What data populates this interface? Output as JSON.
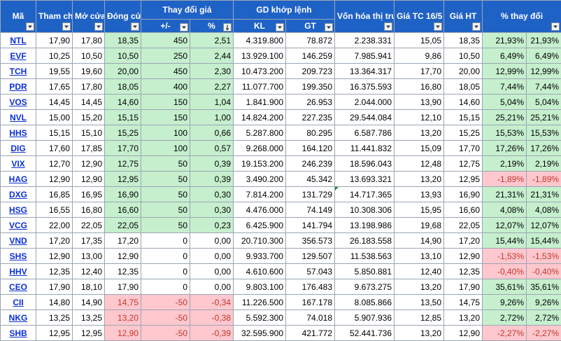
{
  "headers": {
    "ma": "Mã",
    "tham_chieu": "Tham chiếu",
    "mo_cua": "Mở cửa",
    "dong_cua": "Đóng cửa",
    "thay_doi_gia": "Thay đổi giá",
    "thay_doi_abs": "+/-",
    "thay_doi_pct": "%",
    "gd_khop_lenh": "GD khớp lệnh",
    "kl": "KL",
    "gt": "GT",
    "von_hoa": "Vốn hóa thị trường",
    "gia_tc": "Giá TC 16/5",
    "gia_ht": "Giá HT",
    "pct_thay_doi": "% thay đổi"
  },
  "rows": [
    {
      "ticker": "NTL",
      "tham_chieu": "17,90",
      "mo_cua": "17,80",
      "dong_cua": "18,35",
      "change": "450",
      "pct": "2,51",
      "kl": "4.319.800",
      "gt": "78.872",
      "von_hoa": "2.238.331",
      "gia_tc": "15,05",
      "gia_ht": "18,35",
      "pct_thay_doi": "21,93%",
      "pct_extra": "21,93%",
      "dir": "up",
      "pct_dir": "up"
    },
    {
      "ticker": "EVF",
      "tham_chieu": "10,25",
      "mo_cua": "10,50",
      "dong_cua": "10,50",
      "change": "250",
      "pct": "2,44",
      "kl": "13.929.100",
      "gt": "146.259",
      "von_hoa": "7.985.941",
      "gia_tc": "9,86",
      "gia_ht": "10,50",
      "pct_thay_doi": "6,49%",
      "pct_extra": "6,49%",
      "dir": "up",
      "pct_dir": "up"
    },
    {
      "ticker": "TCH",
      "tham_chieu": "19,55",
      "mo_cua": "19,60",
      "dong_cua": "20,00",
      "change": "450",
      "pct": "2,30",
      "kl": "10.473.200",
      "gt": "209.723",
      "von_hoa": "13.364.317",
      "gia_tc": "17,70",
      "gia_ht": "20,00",
      "pct_thay_doi": "12,99%",
      "pct_extra": "12,99%",
      "dir": "up",
      "pct_dir": "up"
    },
    {
      "ticker": "PDR",
      "tham_chieu": "17,65",
      "mo_cua": "17,80",
      "dong_cua": "18,05",
      "change": "400",
      "pct": "2,27",
      "kl": "11.077.700",
      "gt": "199.350",
      "von_hoa": "16.375.593",
      "gia_tc": "16,80",
      "gia_ht": "18,05",
      "pct_thay_doi": "7,44%",
      "pct_extra": "7,44%",
      "dir": "up",
      "pct_dir": "up"
    },
    {
      "ticker": "VOS",
      "tham_chieu": "14,45",
      "mo_cua": "14,45",
      "dong_cua": "14,60",
      "change": "150",
      "pct": "1,04",
      "kl": "1.841.900",
      "gt": "26.953",
      "von_hoa": "2.044.000",
      "gia_tc": "13,90",
      "gia_ht": "14,60",
      "pct_thay_doi": "5,04%",
      "pct_extra": "5,04%",
      "dir": "up",
      "pct_dir": "up"
    },
    {
      "ticker": "NVL",
      "tham_chieu": "15,00",
      "mo_cua": "15,20",
      "dong_cua": "15,15",
      "change": "150",
      "pct": "1,00",
      "kl": "14.824.200",
      "gt": "227.235",
      "von_hoa": "29.544.084",
      "gia_tc": "12,10",
      "gia_ht": "15,15",
      "pct_thay_doi": "25,21%",
      "pct_extra": "25,21%",
      "dir": "up",
      "pct_dir": "up"
    },
    {
      "ticker": "HHS",
      "tham_chieu": "15,15",
      "mo_cua": "15,10",
      "dong_cua": "15,25",
      "change": "100",
      "pct": "0,66",
      "kl": "5.287.800",
      "gt": "80.295",
      "von_hoa": "6.587.786",
      "gia_tc": "13,20",
      "gia_ht": "15,25",
      "pct_thay_doi": "15,53%",
      "pct_extra": "15,53%",
      "dir": "up",
      "pct_dir": "up"
    },
    {
      "ticker": "DIG",
      "tham_chieu": "17,60",
      "mo_cua": "17,85",
      "dong_cua": "17,70",
      "change": "100",
      "pct": "0,57",
      "kl": "9.268.000",
      "gt": "164.120",
      "von_hoa": "11.441.832",
      "gia_tc": "15,09",
      "gia_ht": "17,70",
      "pct_thay_doi": "17,26%",
      "pct_extra": "17,26%",
      "dir": "up",
      "pct_dir": "up"
    },
    {
      "ticker": "VIX",
      "tham_chieu": "12,70",
      "mo_cua": "12,90",
      "dong_cua": "12,75",
      "change": "50",
      "pct": "0,39",
      "kl": "19.153.200",
      "gt": "246.239",
      "von_hoa": "18.596.043",
      "gia_tc": "12,48",
      "gia_ht": "12,75",
      "pct_thay_doi": "2,19%",
      "pct_extra": "2,19%",
      "dir": "up",
      "pct_dir": "up"
    },
    {
      "ticker": "HAG",
      "tham_chieu": "12,90",
      "mo_cua": "12,90",
      "dong_cua": "12,95",
      "change": "50",
      "pct": "0,39",
      "kl": "3.490.200",
      "gt": "45.342",
      "von_hoa": "13.693.321",
      "gia_tc": "13,20",
      "gia_ht": "12,95",
      "pct_thay_doi": "-1,89%",
      "pct_extra": "-1,89%",
      "dir": "up",
      "pct_dir": "down"
    },
    {
      "ticker": "DXG",
      "tham_chieu": "16,85",
      "mo_cua": "16,95",
      "dong_cua": "16,90",
      "change": "50",
      "pct": "0,30",
      "kl": "7.814.200",
      "gt": "131.729",
      "von_hoa": "14.717.365",
      "gia_tc": "13,93",
      "gia_ht": "16,90",
      "pct_thay_doi": "21,31%",
      "pct_extra": "21,31%",
      "dir": "up",
      "pct_dir": "up",
      "mark": true
    },
    {
      "ticker": "HSG",
      "tham_chieu": "16,55",
      "mo_cua": "16,80",
      "dong_cua": "16,60",
      "change": "50",
      "pct": "0,30",
      "kl": "4.476.000",
      "gt": "74.149",
      "von_hoa": "10.308.306",
      "gia_tc": "15,95",
      "gia_ht": "16,60",
      "pct_thay_doi": "4,08%",
      "pct_extra": "4,08%",
      "dir": "up",
      "pct_dir": "up"
    },
    {
      "ticker": "VCG",
      "tham_chieu": "22,00",
      "mo_cua": "22,05",
      "dong_cua": "22,05",
      "change": "50",
      "pct": "0,23",
      "kl": "6.425.900",
      "gt": "141.794",
      "von_hoa": "13.198.986",
      "gia_tc": "19,68",
      "gia_ht": "22,05",
      "pct_thay_doi": "12,07%",
      "pct_extra": "12,07%",
      "dir": "up",
      "pct_dir": "up"
    },
    {
      "ticker": "VND",
      "tham_chieu": "17,20",
      "mo_cua": "17,35",
      "dong_cua": "17,20",
      "change": "0",
      "pct": "0,00",
      "kl": "20.710.300",
      "gt": "356.573",
      "von_hoa": "26.183.558",
      "gia_tc": "14,90",
      "gia_ht": "17,20",
      "pct_thay_doi": "15,44%",
      "pct_extra": "15,44%",
      "dir": "flat",
      "pct_dir": "up"
    },
    {
      "ticker": "SHS",
      "tham_chieu": "12,90",
      "mo_cua": "13,00",
      "dong_cua": "12,90",
      "change": "0",
      "pct": "0,00",
      "kl": "9.933.700",
      "gt": "129.507",
      "von_hoa": "11.538.563",
      "gia_tc": "13,10",
      "gia_ht": "12,90",
      "pct_thay_doi": "-1,53%",
      "pct_extra": "-1,53%",
      "dir": "flat",
      "pct_dir": "down"
    },
    {
      "ticker": "HHV",
      "tham_chieu": "12,35",
      "mo_cua": "12,40",
      "dong_cua": "12,35",
      "change": "0",
      "pct": "0,00",
      "kl": "4.610.600",
      "gt": "57.043",
      "von_hoa": "5.850.881",
      "gia_tc": "12,40",
      "gia_ht": "12,35",
      "pct_thay_doi": "-0,40%",
      "pct_extra": "-0,40%",
      "dir": "flat",
      "pct_dir": "down"
    },
    {
      "ticker": "CEO",
      "tham_chieu": "17,90",
      "mo_cua": "18,10",
      "dong_cua": "17,90",
      "change": "0",
      "pct": "0,00",
      "kl": "9.803.100",
      "gt": "176.483",
      "von_hoa": "9.673.275",
      "gia_tc": "13,20",
      "gia_ht": "17,90",
      "pct_thay_doi": "35,61%",
      "pct_extra": "35,61%",
      "dir": "flat",
      "pct_dir": "up"
    },
    {
      "ticker": "CII",
      "tham_chieu": "14,80",
      "mo_cua": "14,90",
      "dong_cua": "14,75",
      "change": "-50",
      "pct": "-0,34",
      "kl": "11.226.500",
      "gt": "167.178",
      "von_hoa": "8.085.866",
      "gia_tc": "13,50",
      "gia_ht": "14,75",
      "pct_thay_doi": "9,26%",
      "pct_extra": "9,26%",
      "dir": "down",
      "pct_dir": "up"
    },
    {
      "ticker": "NKG",
      "tham_chieu": "13,25",
      "mo_cua": "13,25",
      "dong_cua": "13,20",
      "change": "-50",
      "pct": "-0,38",
      "kl": "5.592.300",
      "gt": "74.018",
      "von_hoa": "5.907.936",
      "gia_tc": "12,85",
      "gia_ht": "13,20",
      "pct_thay_doi": "2,72%",
      "pct_extra": "2,72%",
      "dir": "down",
      "pct_dir": "up"
    },
    {
      "ticker": "SHB",
      "tham_chieu": "12,95",
      "mo_cua": "12,95",
      "dong_cua": "12,90",
      "change": "-50",
      "pct": "-0,39",
      "kl": "32.595.900",
      "gt": "421.772",
      "von_hoa": "52.441.736",
      "gia_tc": "13,20",
      "gia_ht": "12,90",
      "pct_thay_doi": "-2,27%",
      "pct_extra": "-2,27%",
      "dir": "down",
      "pct_dir": "down"
    }
  ]
}
